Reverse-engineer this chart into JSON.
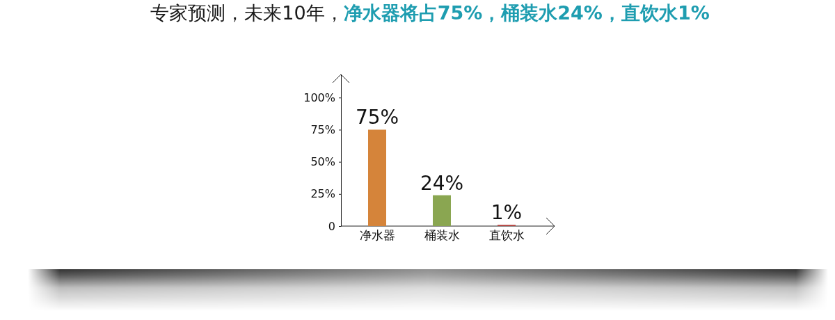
{
  "chart_data": {
    "type": "bar",
    "title": "专家预测，未来10年，",
    "subtitle": "净水器将占75%，桶装水24%，直饮水1%",
    "categories": [
      "净水器",
      "桶装水",
      "直饮水"
    ],
    "values": [
      75,
      24,
      1
    ],
    "colors": [
      "#d5843a",
      "#8aa651",
      "#b5443f"
    ],
    "value_labels": [
      "75%",
      "24%",
      "1%"
    ],
    "ylim": [
      0,
      118
    ],
    "yticks": [
      0,
      {
        "value": 25,
        "label": "25%"
      },
      {
        "value": 50,
        "label": "50%"
      },
      {
        "value": 75,
        "label": "75%"
      },
      {
        "value": 100,
        "label": "100%"
      }
    ]
  }
}
